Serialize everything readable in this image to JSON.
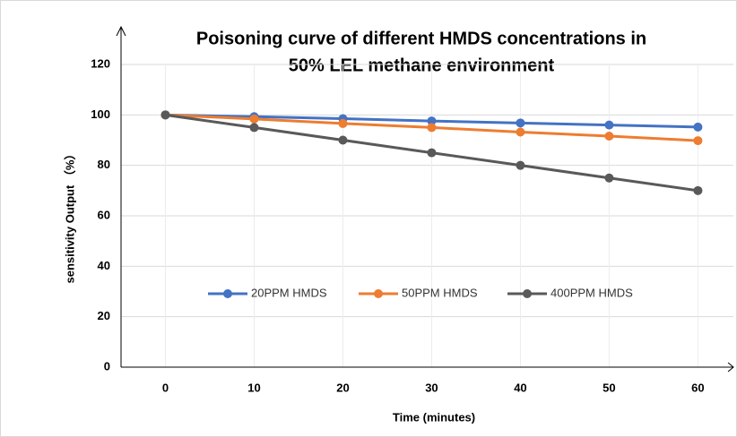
{
  "chart_data": {
    "type": "line",
    "title_lines": [
      "Poisoning curve of different HMDS concentrations in",
      "50% LEL methane environment"
    ],
    "x_label": "Time (minutes)",
    "y_label": "sensitivity Output （%）",
    "x": [
      0,
      10,
      20,
      30,
      40,
      50,
      60
    ],
    "series": [
      {
        "name": "20PPM HMDS",
        "color": "#4472c4",
        "values": [
          100,
          99.3,
          98.5,
          97.6,
          96.8,
          96,
          95.2
        ]
      },
      {
        "name": "50PPM HMDS",
        "color": "#ed7d31",
        "values": [
          100,
          98.4,
          96.6,
          95,
          93.2,
          91.6,
          89.8
        ]
      },
      {
        "name": "400PPM HMDS",
        "color": "#595959",
        "values": [
          100,
          95,
          90,
          85,
          80,
          75,
          70
        ]
      }
    ],
    "xlim": [
      -5,
      64
    ],
    "xticks": [
      0,
      10,
      20,
      30,
      40,
      50,
      60
    ],
    "ylim": [
      0,
      120
    ],
    "yticks": [
      0,
      20,
      40,
      60,
      80,
      100,
      120
    ],
    "grid": true,
    "legend": "center"
  }
}
